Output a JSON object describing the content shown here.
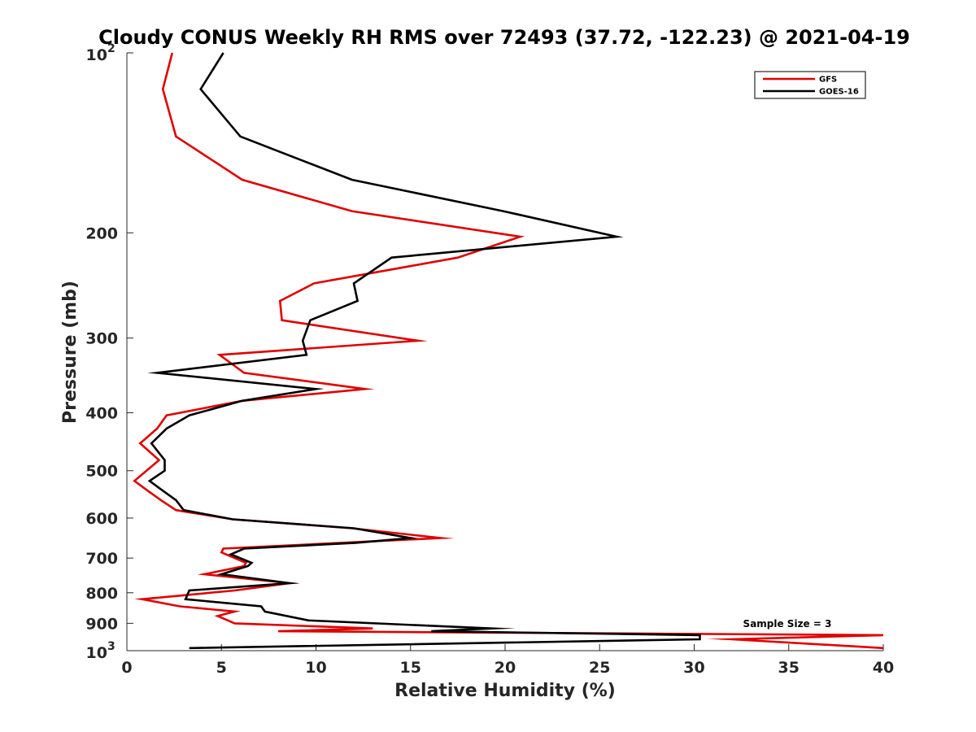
{
  "chart_data": {
    "type": "line",
    "title": "Cloudy CONUS Weekly RH RMS over 72493 (37.72, -122.23) @ 2021-04-19",
    "xlabel": "Relative Humidity (%)",
    "ylabel": "Pressure (mb)",
    "xlim": [
      0,
      40
    ],
    "ylim": [
      100,
      1000
    ],
    "yscale": "log",
    "y_reversed": true,
    "x_ticks": [
      "0",
      "5",
      "10",
      "15",
      "20",
      "25",
      "30",
      "35",
      "40"
    ],
    "y_ticks": [
      {
        "value": 100,
        "base": "10",
        "exp": "2"
      },
      {
        "value": 200,
        "label": "200"
      },
      {
        "value": 300,
        "label": "300"
      },
      {
        "value": 400,
        "label": "400"
      },
      {
        "value": 500,
        "label": "500"
      },
      {
        "value": 600,
        "label": "600"
      },
      {
        "value": 700,
        "label": "700"
      },
      {
        "value": 800,
        "label": "800"
      },
      {
        "value": 900,
        "label": "900"
      },
      {
        "value": 1000,
        "base": "10",
        "exp": "3"
      }
    ],
    "grid": false,
    "legend_position": "top-right",
    "annotation": "Sample Size = 3",
    "series": [
      {
        "name": "GFS",
        "color": "#e00000",
        "points": [
          [
            2.4,
            100
          ],
          [
            1.9,
            115
          ],
          [
            2.6,
            138
          ],
          [
            6.1,
            163
          ],
          [
            11.9,
            184
          ],
          [
            20.8,
            203
          ],
          [
            17.5,
            220
          ],
          [
            9.9,
            243
          ],
          [
            8.1,
            260
          ],
          [
            8.2,
            280
          ],
          [
            15.4,
            303
          ],
          [
            4.9,
            320
          ],
          [
            6.2,
            343
          ],
          [
            12.6,
            365
          ],
          [
            6.1,
            382
          ],
          [
            2.1,
            404
          ],
          [
            1.6,
            425
          ],
          [
            0.7,
            450
          ],
          [
            1.7,
            480
          ],
          [
            0.4,
            520
          ],
          [
            1.1,
            540
          ],
          [
            1.8,
            560
          ],
          [
            2.6,
            582
          ],
          [
            5.6,
            603
          ],
          [
            11.9,
            624
          ],
          [
            16.6,
            648
          ],
          [
            5.1,
            675
          ],
          [
            5.0,
            685
          ],
          [
            6.3,
            713
          ],
          [
            6.2,
            722
          ],
          [
            4.1,
            745
          ],
          [
            8.6,
            771
          ],
          [
            5.7,
            793
          ],
          [
            0.8,
            820
          ],
          [
            2.8,
            843
          ],
          [
            5.7,
            860
          ],
          [
            4.8,
            875
          ],
          [
            5.7,
            900
          ],
          [
            13.0,
            918
          ],
          [
            8.0,
            928
          ],
          [
            40.0,
            942
          ],
          [
            32.0,
            957
          ],
          [
            40.0,
            990
          ]
        ]
      },
      {
        "name": "GOES-16",
        "color": "#000000",
        "points": [
          [
            5.1,
            100
          ],
          [
            3.9,
            115
          ],
          [
            6.0,
            138
          ],
          [
            11.9,
            163
          ],
          [
            19.9,
            184
          ],
          [
            25.9,
            203
          ],
          [
            14.0,
            220
          ],
          [
            12.0,
            243
          ],
          [
            12.2,
            260
          ],
          [
            9.7,
            280
          ],
          [
            9.3,
            303
          ],
          [
            9.5,
            320
          ],
          [
            1.6,
            343
          ],
          [
            10.0,
            365
          ],
          [
            6.1,
            382
          ],
          [
            3.3,
            404
          ],
          [
            2.1,
            425
          ],
          [
            1.3,
            450
          ],
          [
            2.0,
            480
          ],
          [
            2.0,
            500
          ],
          [
            1.2,
            520
          ],
          [
            1.9,
            540
          ],
          [
            2.6,
            560
          ],
          [
            3.0,
            582
          ],
          [
            5.6,
            603
          ],
          [
            12.0,
            624
          ],
          [
            15.0,
            648
          ],
          [
            12.1,
            660
          ],
          [
            6.2,
            675
          ],
          [
            5.5,
            690
          ],
          [
            6.6,
            713
          ],
          [
            6.4,
            722
          ],
          [
            5.0,
            745
          ],
          [
            8.6,
            771
          ],
          [
            3.3,
            793
          ],
          [
            3.1,
            820
          ],
          [
            7.1,
            843
          ],
          [
            7.3,
            860
          ],
          [
            9.6,
            890
          ],
          [
            19.3,
            918
          ],
          [
            16.1,
            928
          ],
          [
            30.3,
            942
          ],
          [
            30.3,
            957
          ],
          [
            3.3,
            990
          ]
        ]
      }
    ]
  }
}
